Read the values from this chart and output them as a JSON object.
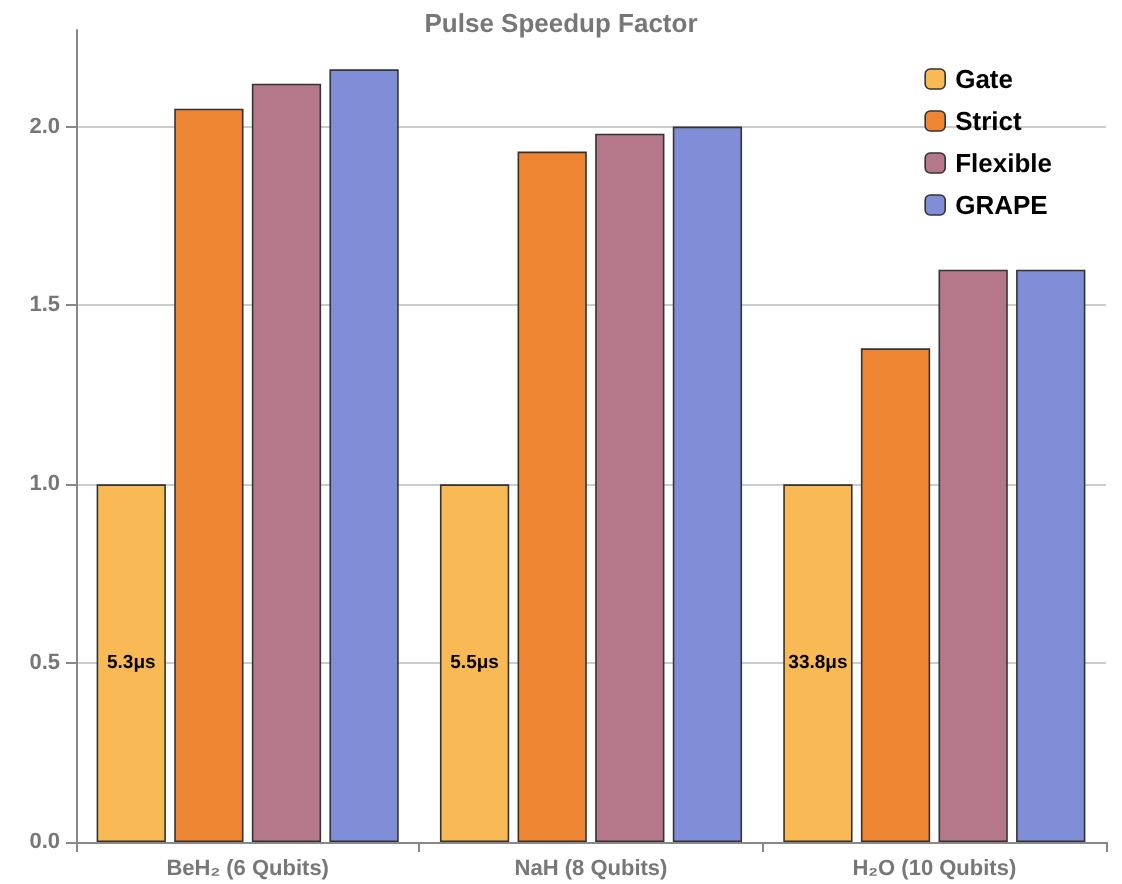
{
  "chart_data": {
    "type": "bar",
    "title": "Pulse Speedup Factor",
    "categories": [
      "BeH₂ (6 Qubits)",
      "NaH (8 Qubits)",
      "H₂O (10 Qubits)"
    ],
    "series": [
      {
        "name": "Gate",
        "color": "#f9b955",
        "values": [
          1,
          1,
          1
        ]
      },
      {
        "name": "Strict",
        "color": "#ee8533",
        "values": [
          2.05,
          1.93,
          1.38
        ]
      },
      {
        "name": "Flexible",
        "color": "#b5788a",
        "values": [
          2.12,
          1.98,
          1.6
        ]
      },
      {
        "name": "GRAPE",
        "color": "#7f8ed6",
        "values": [
          2.16,
          2.0,
          1.6
        ]
      }
    ],
    "ylim": [
      0,
      2.27
    ],
    "yticks": [
      {
        "value": 0,
        "label": "0.0"
      },
      0.5,
      {
        "value": 1,
        "label": "1.0"
      },
      1.5,
      {
        "value": 2,
        "label": "2.0"
      }
    ],
    "grid": "y",
    "legend": "top right",
    "annotations": [
      "5.3μs",
      "5.5μs",
      "33.8μs"
    ]
  }
}
